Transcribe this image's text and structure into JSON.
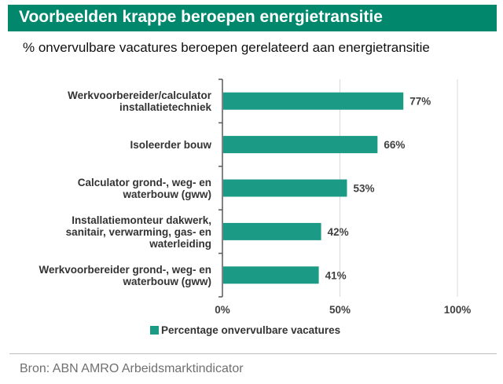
{
  "header": {
    "title": "Voorbeelden krappe beroepen energietransitie",
    "subtitle": "% onvervulbare vacatures beroepen gerelateerd aan energietransitie"
  },
  "colors": {
    "accent": "#00876c",
    "bar": "#1b9a85",
    "grid": "#d9d9d9",
    "axis": "#595959"
  },
  "chart_data": {
    "type": "bar",
    "orientation": "horizontal",
    "categories": [
      [
        "Werkvoorbereider/calculator",
        "installatietechniek"
      ],
      [
        "Isoleerder bouw"
      ],
      [
        "Calculator grond-, weg- en",
        "waterbouw (gww)"
      ],
      [
        "Installatiemonteur dakwerk,",
        "sanitair, verwarming, gas- en",
        "waterleiding"
      ],
      [
        "Werkvoorbereider grond-, weg- en",
        "waterbouw (gww)"
      ]
    ],
    "series": [
      {
        "name": "Percentage onvervulbare vacatures",
        "values": [
          77,
          66,
          53,
          42,
          41
        ],
        "labels": [
          "77%",
          "66%",
          "53%",
          "42%",
          "41%"
        ]
      }
    ],
    "xlim": [
      0,
      100
    ],
    "xticks": [
      0,
      50,
      100
    ],
    "xtick_labels": [
      "0%",
      "50%",
      "100%"
    ],
    "grid": true,
    "legend_position": "bottom"
  },
  "footer": {
    "source": "Bron: ABN AMRO Arbeidsmarktindicator"
  }
}
